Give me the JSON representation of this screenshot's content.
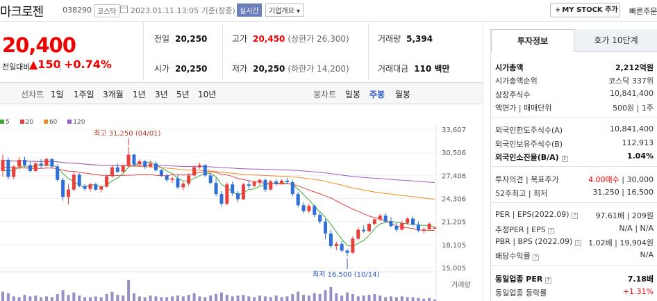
{
  "header": {
    "name": "마크로젠",
    "code": "038290",
    "market": "코스닥",
    "datetime": "2023.01.11 13:05 기준(장중)",
    "realtime": "실시간",
    "company_overview": "기업개요 ▾",
    "mystock": "MY STOCK 추가",
    "quick": "빠른주문"
  },
  "price": {
    "current": "20,400",
    "diff_label": "전일대비",
    "diff": "▲150",
    "sep": "|",
    "rate": "+0.74%"
  },
  "stats": {
    "prev_label": "전일",
    "prev": "20,250",
    "high_label": "고가",
    "high": "20,450",
    "high_sub": "(상한가 26,300)",
    "volume_label": "거래량",
    "volume": "5,394",
    "open_label": "시가",
    "open": "20,250",
    "low_label": "저가",
    "low": "20,250",
    "low_sub": "(하한가 14,200)",
    "amount_label": "거래대금",
    "amount": "110 백만"
  },
  "periods": {
    "line_label": "선차트",
    "line": [
      "1일",
      "1주일",
      "3개월",
      "1년",
      "3년",
      "5년",
      "10년"
    ],
    "candle_label": "봉차트",
    "candle": [
      "일봉",
      "주봉",
      "월봉"
    ],
    "active": "주봉"
  },
  "chart_data": {
    "type": "candlestick",
    "legend": [
      {
        "name": "5",
        "color": "#3aaa35"
      },
      {
        "name": "20",
        "color": "#e8413d"
      },
      {
        "name": "60",
        "color": "#f08a1e"
      },
      {
        "name": "120",
        "color": "#9b59d0"
      }
    ],
    "y_ticks": [
      "33,607",
      "30,506",
      "27,406",
      "24,306",
      "21,205",
      "18,105",
      "15,005"
    ],
    "ylim": [
      15005,
      33607
    ],
    "high_note": "최고 31,250 (04/01)",
    "low_note": "최저 16,500 (10/14)",
    "volume_label": "거래량",
    "candles": [
      [
        28000,
        30200,
        27200,
        29500
      ],
      [
        29500,
        29800,
        26800,
        27200
      ],
      [
        27200,
        28800,
        26900,
        28600
      ],
      [
        28600,
        29900,
        28200,
        29500
      ],
      [
        29500,
        29900,
        28500,
        28800
      ],
      [
        28800,
        29300,
        27800,
        28000
      ],
      [
        28000,
        29200,
        27900,
        29000
      ],
      [
        29000,
        29600,
        28400,
        28700
      ],
      [
        28700,
        29800,
        28600,
        29600
      ],
      [
        29600,
        29700,
        28400,
        28600
      ],
      [
        28600,
        28900,
        26600,
        26800
      ],
      [
        26800,
        27100,
        24000,
        24500
      ],
      [
        24500,
        26200,
        23500,
        25500
      ],
      [
        25500,
        27800,
        25300,
        27500
      ],
      [
        27500,
        27700,
        25800,
        26000
      ],
      [
        26000,
        26300,
        25300,
        25600
      ],
      [
        25600,
        26400,
        25200,
        26200
      ],
      [
        26200,
        26400,
        25300,
        25500
      ],
      [
        25500,
        26100,
        25100,
        25900
      ],
      [
        25900,
        27500,
        25800,
        27300
      ],
      [
        27300,
        28800,
        27100,
        28500
      ],
      [
        28500,
        29000,
        27700,
        27900
      ],
      [
        27900,
        28900,
        27800,
        28700
      ],
      [
        28700,
        31250,
        28500,
        30200
      ],
      [
        30200,
        30300,
        28600,
        28900
      ],
      [
        28900,
        29600,
        28600,
        29300
      ],
      [
        29300,
        29500,
        28300,
        28600
      ],
      [
        28600,
        29400,
        28500,
        29000
      ],
      [
        29000,
        29300,
        27900,
        28100
      ],
      [
        28100,
        28300,
        27200,
        27400
      ],
      [
        27400,
        27600,
        26500,
        26800
      ],
      [
        26800,
        27200,
        26400,
        27000
      ],
      [
        27000,
        27500,
        25600,
        25800
      ],
      [
        25800,
        26600,
        25400,
        26300
      ],
      [
        26300,
        27700,
        26000,
        27400
      ],
      [
        27400,
        28800,
        27200,
        28500
      ],
      [
        28500,
        29100,
        28300,
        28800
      ],
      [
        28800,
        28900,
        27200,
        27400
      ],
      [
        27400,
        27700,
        26200,
        26400
      ],
      [
        26400,
        27100,
        24600,
        24900
      ],
      [
        24900,
        25300,
        23200,
        23600
      ],
      [
        23600,
        26500,
        23400,
        26200
      ],
      [
        26200,
        26600,
        24700,
        25000
      ],
      [
        25000,
        25300,
        23800,
        24200
      ],
      [
        24200,
        26400,
        24100,
        26200
      ],
      [
        26200,
        26800,
        25600,
        26000
      ],
      [
        26000,
        26700,
        25800,
        26500
      ],
      [
        26500,
        27000,
        26100,
        26800
      ],
      [
        26800,
        27000,
        25200,
        25500
      ],
      [
        25500,
        26800,
        25400,
        26600
      ],
      [
        26600,
        26900,
        26000,
        26300
      ],
      [
        26300,
        26900,
        26200,
        26700
      ],
      [
        26700,
        27100,
        26300,
        26500
      ],
      [
        26500,
        26800,
        24600,
        24900
      ],
      [
        24900,
        25200,
        23100,
        23400
      ],
      [
        23400,
        23800,
        22300,
        22600
      ],
      [
        22600,
        23600,
        22300,
        23300
      ],
      [
        23300,
        23500,
        21800,
        22100
      ],
      [
        22100,
        22500,
        20900,
        21200
      ],
      [
        21200,
        21600,
        18800,
        19600
      ],
      [
        19600,
        20100,
        17600,
        17900
      ],
      [
        17900,
        18500,
        17300,
        18200
      ],
      [
        18200,
        18600,
        17100,
        17300
      ],
      [
        17300,
        17500,
        16500,
        17000
      ],
      [
        17000,
        19200,
        16900,
        18900
      ],
      [
        18900,
        20400,
        18700,
        20100
      ],
      [
        20100,
        20700,
        19700,
        19900
      ],
      [
        19900,
        21100,
        19800,
        20900
      ],
      [
        20900,
        21600,
        20700,
        21500
      ],
      [
        21500,
        22200,
        21300,
        22000
      ],
      [
        22000,
        22300,
        21000,
        21200
      ],
      [
        21200,
        21800,
        20400,
        20600
      ],
      [
        20600,
        21000,
        19800,
        20100
      ],
      [
        20100,
        21300,
        20000,
        21000
      ],
      [
        21000,
        21800,
        20800,
        21600
      ],
      [
        21600,
        21900,
        20600,
        20800
      ],
      [
        20800,
        21200,
        19800,
        20000
      ],
      [
        20000,
        20400,
        19600,
        20150
      ],
      [
        20150,
        21100,
        20100,
        20900
      ],
      [
        20250,
        20450,
        20250,
        20400
      ]
    ],
    "volumes": [
      12,
      10,
      6,
      5,
      8,
      6,
      7,
      5,
      6,
      5,
      9,
      14,
      8,
      11,
      7,
      5,
      5,
      6,
      5,
      9,
      12,
      8,
      7,
      27,
      10,
      6,
      5,
      7,
      6,
      5,
      5,
      6,
      7,
      6,
      8,
      10,
      6,
      5,
      7,
      9,
      11,
      8,
      6,
      7,
      8,
      6,
      5,
      7,
      6,
      5,
      7,
      5,
      6,
      9,
      12,
      8,
      7,
      10,
      9,
      14,
      18,
      10,
      7,
      11,
      9,
      6,
      7,
      8,
      9,
      7,
      5,
      6,
      5,
      6,
      5,
      5,
      4,
      3,
      4,
      2
    ]
  },
  "right_panel": {
    "tab_active": "투자정보",
    "tab_other": "호가 10단계",
    "rows": [
      {
        "k": "시가총액",
        "v": "2,212억원",
        "bold": true
      },
      {
        "k": "시가총액순위",
        "v": "코스닥 337위"
      },
      {
        "k": "상장주식수",
        "v": "10,841,400"
      },
      {
        "k": "액면가 | 매매단위",
        "v": "500원 | 1주"
      },
      {
        "k": "외국인한도주식수(A)",
        "v": "10,841,400"
      },
      {
        "k": "외국인보유주식수(B)",
        "v": "112,913"
      },
      {
        "k": "외국인소진율(B/A)",
        "v": "1.04%",
        "bold": true
      },
      {
        "k": "투자의견 | 목표주가",
        "v1": "4.00매수",
        "v2": "30,000"
      },
      {
        "k": "52주최고 | 최저",
        "v": "31,250 | 16,500"
      },
      {
        "k": "PER | EPS(2022.09)",
        "v": "97.61배 | 209원"
      },
      {
        "k": "추정PER | EPS",
        "v": "N/A | N/A"
      },
      {
        "k": "PBR | BPS (2022.09)",
        "v": "1.02배 | 19,904원"
      },
      {
        "k": "배당수익률",
        "v": "N/A"
      },
      {
        "k": "동일업종 PER",
        "v": "7.18배",
        "bold": true
      },
      {
        "k": "동일업종 등락률",
        "v": "+1.31%"
      }
    ]
  }
}
